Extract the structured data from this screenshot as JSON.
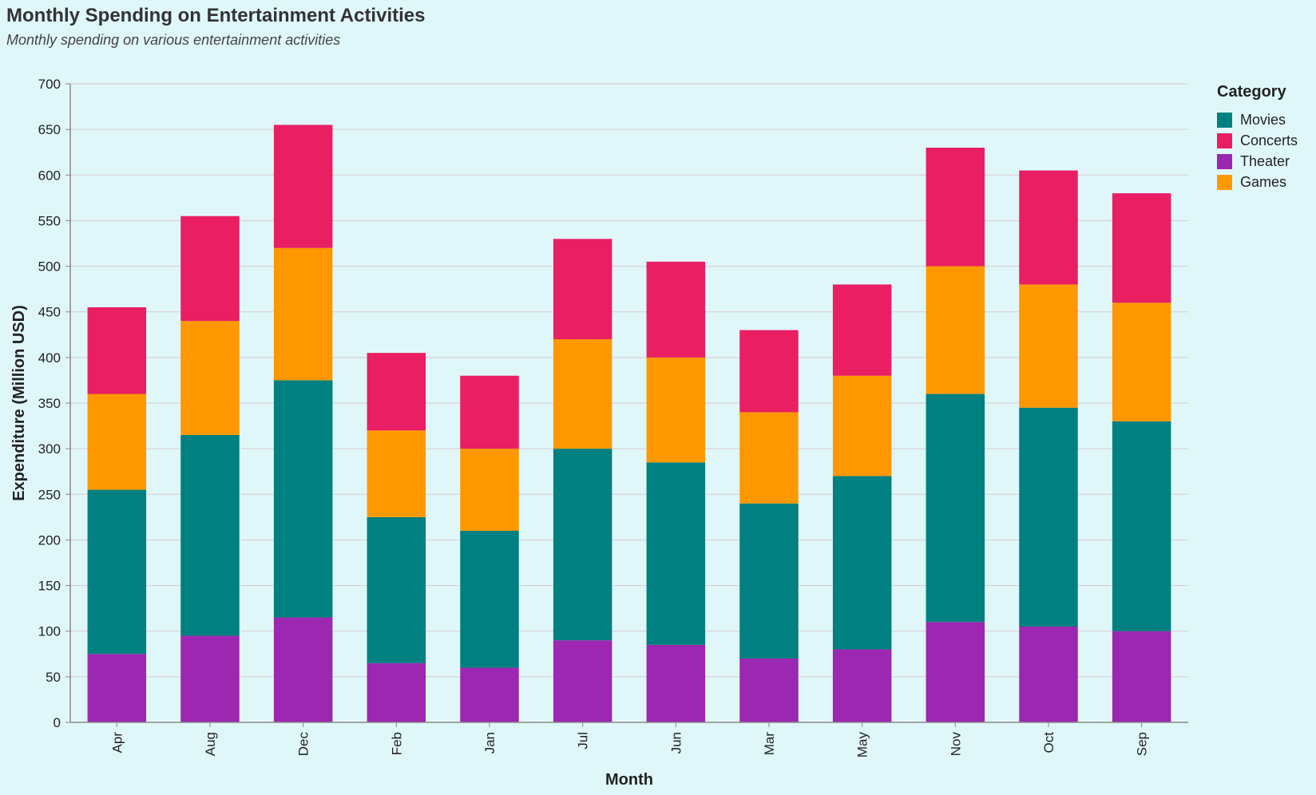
{
  "title": "Monthly Spending on Entertainment Activities",
  "subtitle": "Monthly spending on various entertainment activities",
  "legend": {
    "title": "Category",
    "items": [
      {
        "label": "Movies",
        "color": "#008080"
      },
      {
        "label": "Concerts",
        "color": "#e91e63"
      },
      {
        "label": "Theater",
        "color": "#9c27b0"
      },
      {
        "label": "Games",
        "color": "#ff9800"
      }
    ]
  },
  "chart_data": {
    "type": "bar",
    "stacked": true,
    "title": "Monthly Spending on Entertainment Activities",
    "subtitle": "Monthly spending on various entertainment activities",
    "xlabel": "Month",
    "ylabel": "Expenditure (Million USD)",
    "ylim": [
      0,
      700
    ],
    "yticks": [
      0,
      50,
      100,
      150,
      200,
      250,
      300,
      350,
      400,
      450,
      500,
      550,
      600,
      650,
      700
    ],
    "grid": true,
    "legend_position": "right",
    "categories": [
      "Apr",
      "Aug",
      "Dec",
      "Feb",
      "Jan",
      "Jul",
      "Jun",
      "Mar",
      "May",
      "Nov",
      "Oct",
      "Sep"
    ],
    "series": [
      {
        "name": "Theater",
        "color": "#9c27b0",
        "values": [
          75,
          95,
          115,
          65,
          60,
          90,
          85,
          70,
          80,
          110,
          105,
          100
        ]
      },
      {
        "name": "Movies",
        "color": "#008080",
        "values": [
          180,
          220,
          260,
          160,
          150,
          210,
          200,
          170,
          190,
          250,
          240,
          230
        ]
      },
      {
        "name": "Games",
        "color": "#ff9800",
        "values": [
          105,
          125,
          145,
          95,
          90,
          120,
          115,
          100,
          110,
          140,
          135,
          130
        ]
      },
      {
        "name": "Concerts",
        "color": "#e91e63",
        "values": [
          95,
          115,
          135,
          85,
          80,
          110,
          105,
          90,
          100,
          130,
          125,
          120
        ]
      }
    ]
  }
}
